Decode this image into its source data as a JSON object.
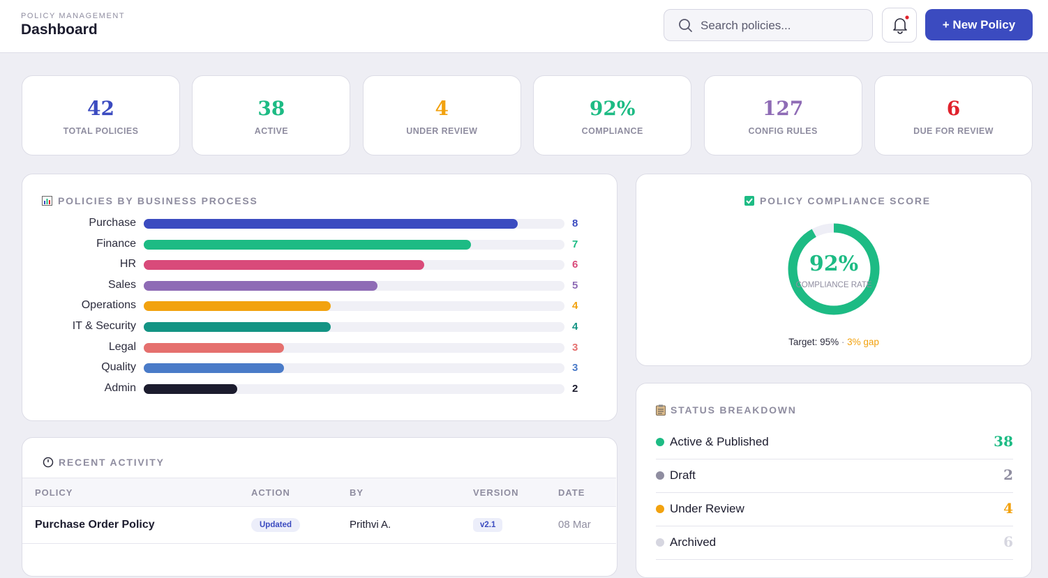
{
  "header": {
    "eyebrow": "POLICY MANAGEMENT",
    "title": "Dashboard",
    "search_placeholder": "Search policies...",
    "new_button": "+ New Policy"
  },
  "kpis": [
    {
      "value": "42",
      "label": "TOTAL POLICIES",
      "color": "#3b4bc0"
    },
    {
      "value": "38",
      "label": "ACTIVE",
      "color": "#1dbb84"
    },
    {
      "value": "4",
      "label": "UNDER REVIEW",
      "color": "#f2a20f"
    },
    {
      "value": "92%",
      "label": "COMPLIANCE",
      "color": "#1dbb84"
    },
    {
      "value": "127",
      "label": "CONFIG RULES",
      "color": "#8e6bb5"
    },
    {
      "value": "6",
      "label": "DUE FOR REVIEW",
      "color": "#e0222c"
    }
  ],
  "process_chart": {
    "type": "bar",
    "title": "POLICIES BY BUSINESS PROCESS",
    "categories": [
      "Purchase",
      "Finance",
      "HR",
      "Sales",
      "Operations",
      "IT & Security",
      "Legal",
      "Quality",
      "Admin"
    ],
    "values": [
      8,
      7,
      6,
      5,
      4,
      4,
      3,
      3,
      2
    ],
    "colors": [
      "#3b4bc0",
      "#1dbb84",
      "#d94a7a",
      "#8e6bb5",
      "#f2a20f",
      "#149484",
      "#e5706e",
      "#4a7bc8",
      "#1c1c2e"
    ],
    "xlim": [
      0,
      9
    ]
  },
  "compliance": {
    "title": "POLICY COMPLIANCE SCORE",
    "type": "donut",
    "value": 92,
    "value_label": "92%",
    "range": [
      0,
      100
    ],
    "color": "#1dbb84",
    "caption": "COMPLIANCE RATE",
    "target": "Target: 95%",
    "separator": "·",
    "gap": "3% gap"
  },
  "status": {
    "title": "STATUS BREAKDOWN",
    "rows": [
      {
        "name": "Active & Published",
        "count": 38,
        "color": "#1dbb84"
      },
      {
        "name": "Draft",
        "count": 2,
        "color": "#8f8da0"
      },
      {
        "name": "Under Review",
        "count": 4,
        "color": "#f2a20f"
      },
      {
        "name": "Archived",
        "count": 6,
        "color": "#d6d6e0"
      }
    ]
  },
  "activity": {
    "title": "RECENT ACTIVITY",
    "columns": [
      "POLICY",
      "ACTION",
      "BY",
      "VERSION",
      "DATE"
    ],
    "rows": [
      [
        "Purchase Order Policy",
        "Updated",
        "Prithvi A.",
        "v2.1",
        "08 Mar"
      ]
    ]
  }
}
